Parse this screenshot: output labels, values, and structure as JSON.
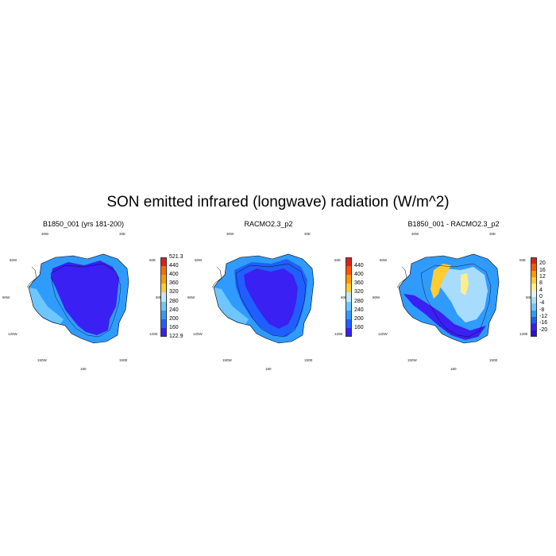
{
  "title": "SON emitted infrared (longwave) radiation (W/m^2)",
  "panels": [
    {
      "title": "B1850_001 (yrs 181-200)",
      "colorbar": {
        "labels": [
          "521.3",
          "440",
          "400",
          "360",
          "320",
          "280",
          "240",
          "200",
          "160",
          "122.9"
        ],
        "colors": [
          "#dd1f1f",
          "#ff6a00",
          "#ff9a00",
          "#ffcc33",
          "#bfe8ff",
          "#6ec6ff",
          "#2f9bff",
          "#1f5fff",
          "#3a20f2"
        ]
      }
    },
    {
      "title": "RACMO2.3_p2",
      "colorbar": {
        "labels": [
          "440",
          "400",
          "360",
          "320",
          "280",
          "240",
          "200",
          "160"
        ],
        "colors": [
          "#dd1f1f",
          "#ff5400",
          "#ff9a00",
          "#ffcc33",
          "#bfe8ff",
          "#6ec6ff",
          "#2f9bff",
          "#1f5fff",
          "#3a20f2"
        ]
      }
    },
    {
      "title": "B1850_001 - RACMO2.3_p2",
      "colorbar": {
        "labels": [
          "20",
          "16",
          "12",
          "8",
          "4",
          "0",
          "-4",
          "-8",
          "-12",
          "-16",
          "-20"
        ],
        "colors": [
          "#dd1f1f",
          "#ff5400",
          "#ff9a00",
          "#ffcc33",
          "#ffee88",
          "#dff2ff",
          "#a8dcff",
          "#6ec6ff",
          "#2f9bff",
          "#1f5fff",
          "#3a20f2",
          "#2a10d0"
        ]
      }
    }
  ],
  "map_labels": {
    "lon_30w": "30W",
    "lon_30e": "30E",
    "lon_60w": "60W",
    "lon_60e": "60E",
    "lon_90w": "90W",
    "lon_90e": "90E",
    "lon_120w": "120W",
    "lon_120e": "120E",
    "lon_150w": "150W",
    "lon_150e": "150E",
    "lon_180": "180"
  }
}
